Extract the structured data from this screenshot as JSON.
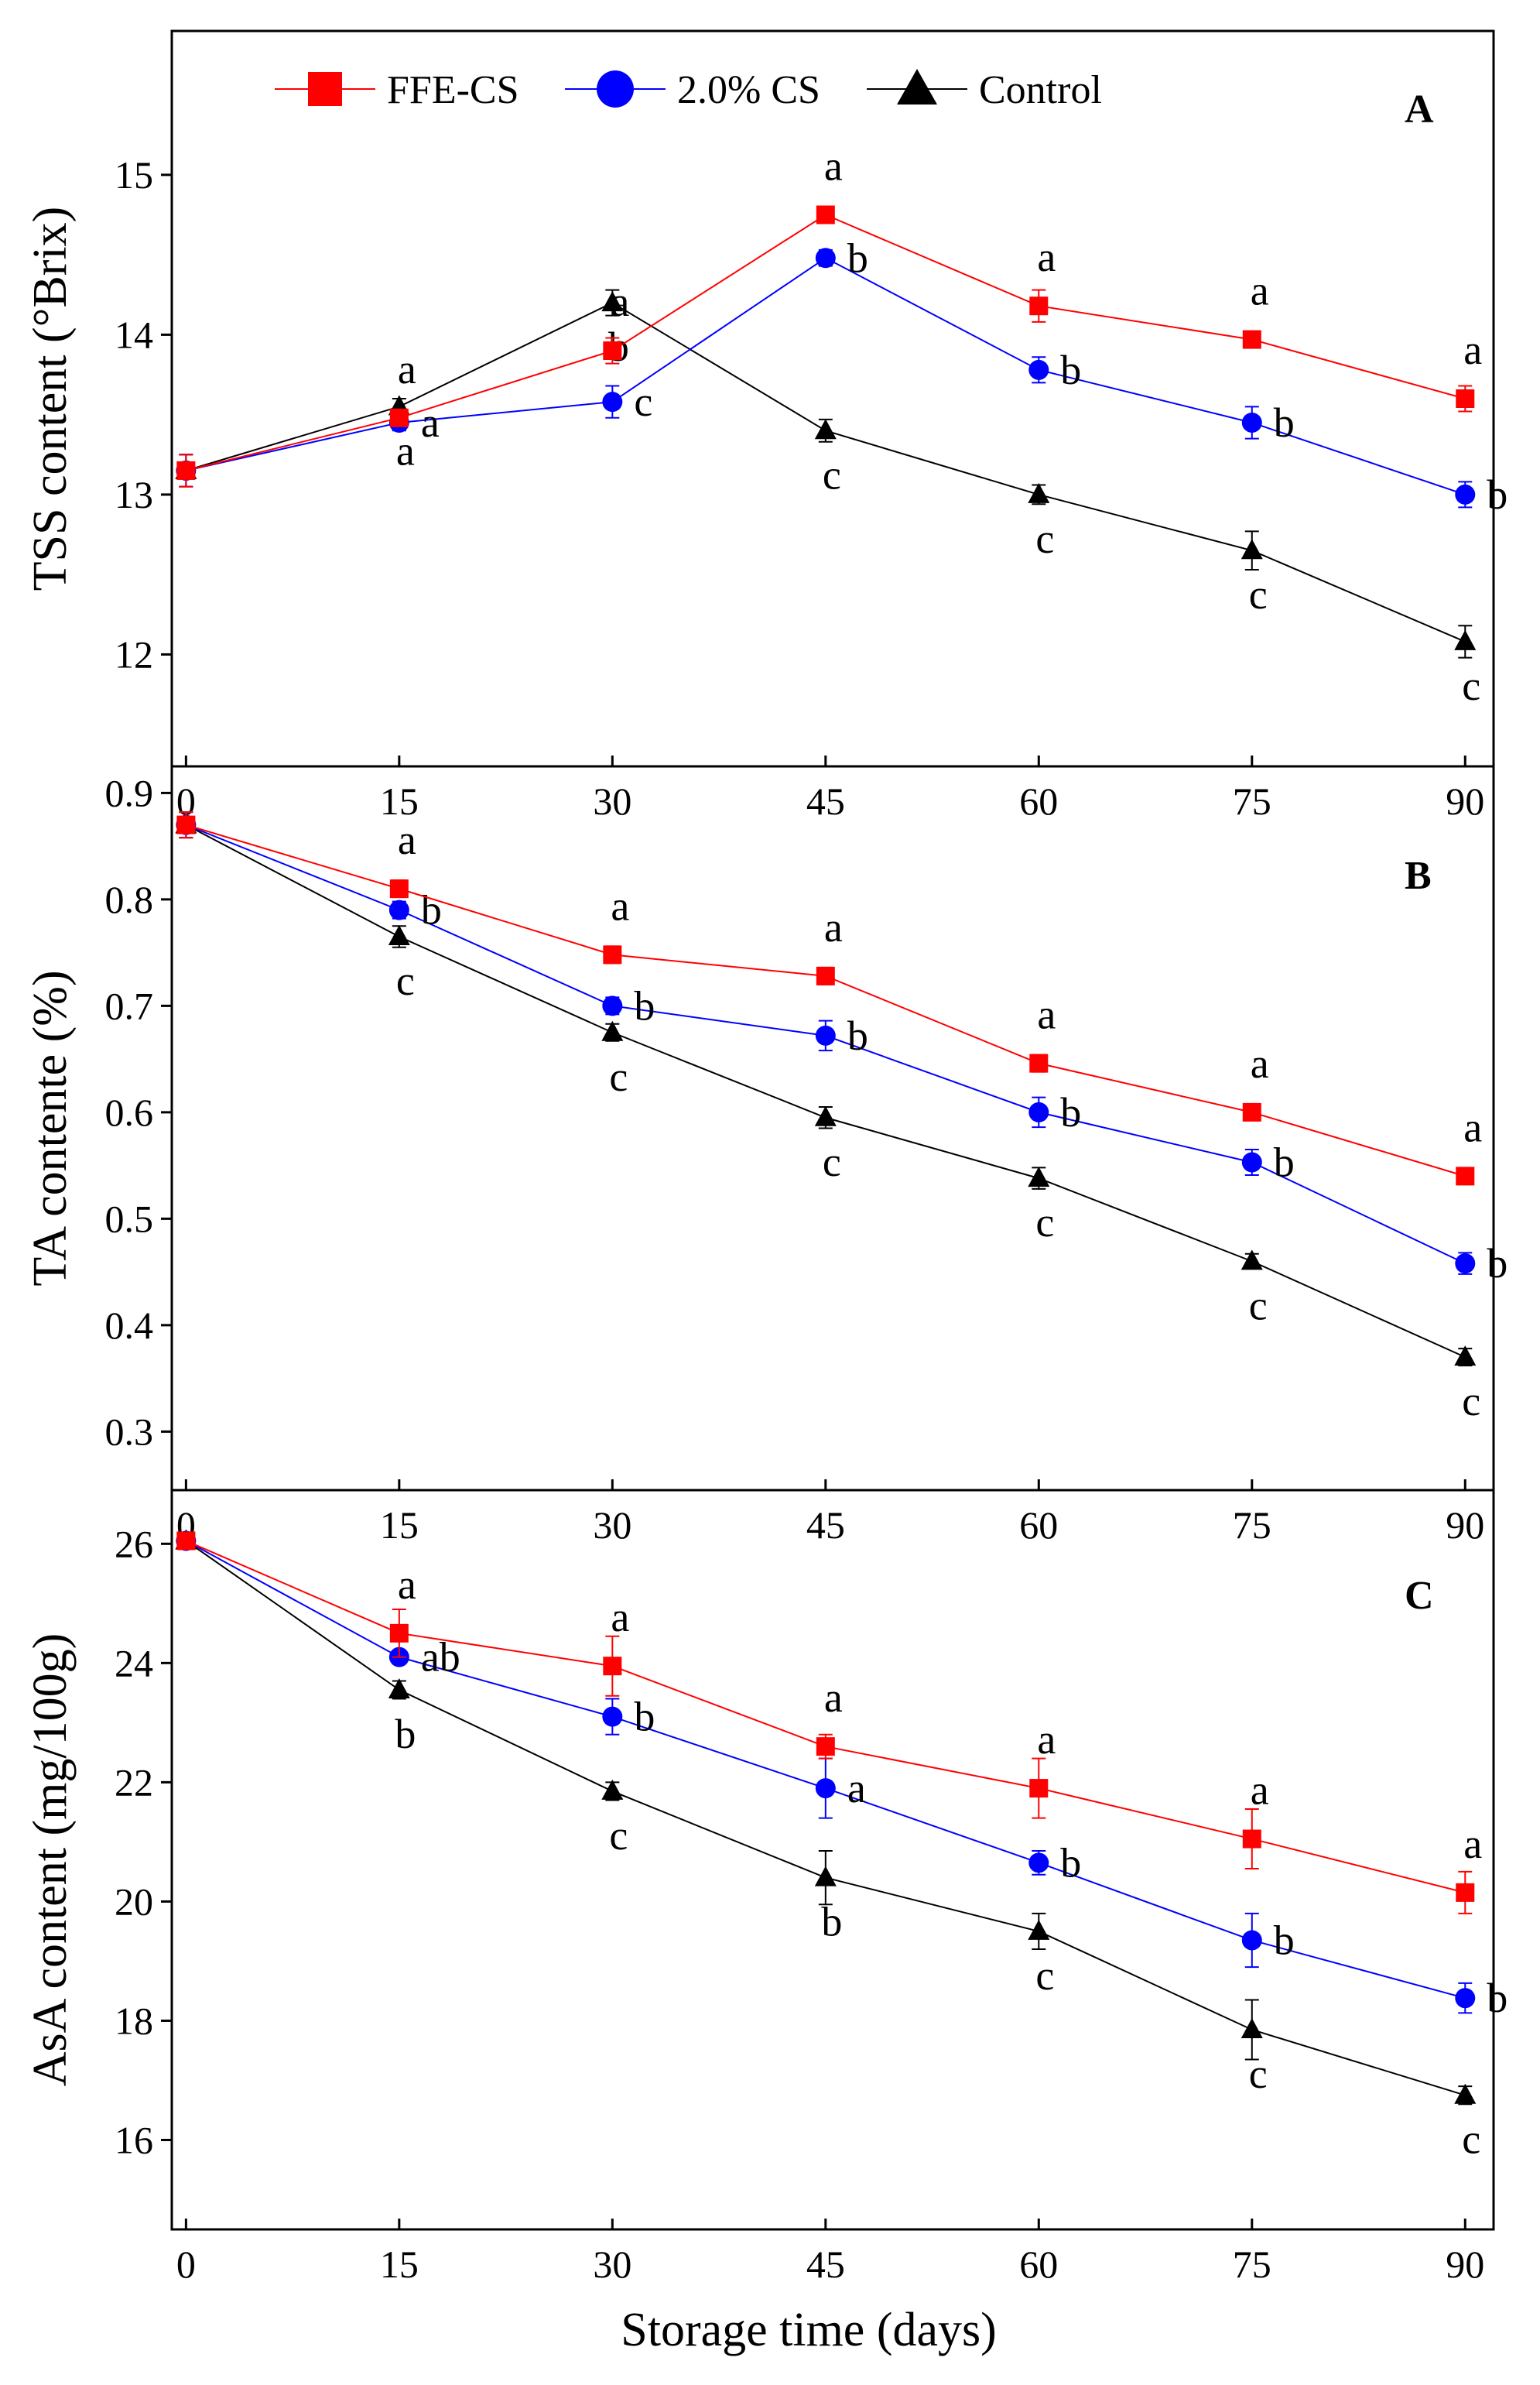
{
  "colors": {
    "FFE-CS": "#ff0000",
    "2.0% CS": "#0000ff",
    "Control": "#000000",
    "axis": "#000000"
  },
  "legend": [
    {
      "name": "FFE-CS",
      "marker": "square"
    },
    {
      "name": "2.0% CS",
      "marker": "circle"
    },
    {
      "name": "Control",
      "marker": "triangle"
    }
  ],
  "x_axis": {
    "title": "Storage time (days)",
    "ticks": [
      0,
      15,
      30,
      45,
      60,
      75,
      90
    ]
  },
  "chart_data": [
    {
      "panel": "A",
      "type": "line",
      "ylabel": "TSS content (°Brix)",
      "xlim": [
        -1,
        92
      ],
      "ylim": [
        11.3,
        15.9
      ],
      "yticks": [
        12,
        13,
        14,
        15
      ],
      "x": [
        0,
        15,
        30,
        45,
        60,
        75,
        90
      ],
      "series": [
        {
          "name": "FFE-CS",
          "marker": "square",
          "values": [
            13.15,
            13.48,
            13.9,
            14.75,
            14.18,
            13.97,
            13.6
          ],
          "errors": [
            0.1,
            0.05,
            0.08,
            0.05,
            0.1,
            0.05,
            0.08
          ],
          "letters": [
            "",
            "a",
            "a",
            "a",
            "a",
            "a",
            "a"
          ]
        },
        {
          "name": "2.0% CS",
          "marker": "circle",
          "values": [
            13.15,
            13.45,
            13.58,
            14.48,
            13.78,
            13.45,
            13.0
          ],
          "errors": [
            0.1,
            0.05,
            0.1,
            0.05,
            0.08,
            0.1,
            0.08
          ],
          "letters": [
            "",
            "a",
            "c",
            "b",
            "b",
            "b",
            "b"
          ]
        },
        {
          "name": "Control",
          "marker": "triangle",
          "values": [
            13.15,
            13.55,
            14.2,
            13.4,
            13.0,
            12.65,
            12.08
          ],
          "errors": [
            0.1,
            0.05,
            0.08,
            0.07,
            0.06,
            0.12,
            0.1
          ],
          "letters": [
            "",
            "a",
            "b",
            "c",
            "c",
            "c",
            "c"
          ]
        }
      ]
    },
    {
      "panel": "B",
      "type": "line",
      "ylabel": "TA contente (%)",
      "xlim": [
        -1,
        92
      ],
      "ylim": [
        0.245,
        0.925
      ],
      "yticks": [
        0.3,
        0.4,
        0.5,
        0.6,
        0.7,
        0.8,
        0.9
      ],
      "x": [
        0,
        15,
        30,
        45,
        60,
        75,
        90
      ],
      "series": [
        {
          "name": "FFE-CS",
          "marker": "square",
          "values": [
            0.87,
            0.81,
            0.748,
            0.728,
            0.646,
            0.6,
            0.54
          ],
          "errors": [
            0.012,
            0.008,
            0.008,
            0.008,
            0.008,
            0.007,
            0.007
          ],
          "letters": [
            "",
            "a",
            "a",
            "a",
            "a",
            "a",
            "a"
          ]
        },
        {
          "name": "2.0% CS",
          "marker": "circle",
          "values": [
            0.87,
            0.79,
            0.7,
            0.672,
            0.6,
            0.553,
            0.458
          ],
          "errors": [
            0.012,
            0.008,
            0.008,
            0.014,
            0.014,
            0.012,
            0.01
          ],
          "letters": [
            "",
            "b",
            "b",
            "b",
            "b",
            "b",
            "b"
          ]
        },
        {
          "name": "Control",
          "marker": "triangle",
          "values": [
            0.87,
            0.765,
            0.675,
            0.595,
            0.538,
            0.46,
            0.37
          ],
          "errors": [
            0.012,
            0.01,
            0.008,
            0.01,
            0.01,
            0.007,
            0.008
          ],
          "letters": [
            "",
            "c",
            "c",
            "c",
            "c",
            "c",
            "c"
          ]
        }
      ]
    },
    {
      "panel": "C",
      "type": "line",
      "ylabel": "AsA content (mg/100g)",
      "xlim": [
        -1,
        92
      ],
      "ylim": [
        14.5,
        26.9
      ],
      "yticks": [
        16,
        18,
        20,
        22,
        24,
        26
      ],
      "x": [
        0,
        15,
        30,
        45,
        60,
        75,
        90
      ],
      "series": [
        {
          "name": "FFE-CS",
          "marker": "square",
          "values": [
            26.05,
            24.5,
            23.95,
            22.6,
            21.9,
            21.05,
            20.15
          ],
          "errors": [
            0.1,
            0.4,
            0.5,
            0.2,
            0.5,
            0.5,
            0.35
          ],
          "letters": [
            "",
            "a",
            "a",
            "a",
            "a",
            "a",
            "a"
          ]
        },
        {
          "name": "2.0% CS",
          "marker": "circle",
          "values": [
            26.05,
            24.1,
            23.1,
            21.9,
            20.65,
            19.35,
            18.38
          ],
          "errors": [
            0.1,
            0.1,
            0.3,
            0.5,
            0.2,
            0.45,
            0.25
          ],
          "letters": [
            "",
            "ab",
            "b",
            "a",
            "b",
            "b",
            "b"
          ]
        },
        {
          "name": "Control",
          "marker": "triangle",
          "values": [
            26.05,
            23.55,
            21.85,
            20.4,
            19.5,
            17.85,
            16.75
          ],
          "errors": [
            0.1,
            0.15,
            0.15,
            0.45,
            0.3,
            0.5,
            0.15
          ],
          "letters": [
            "",
            "b",
            "c",
            "b",
            "c",
            "c",
            "c"
          ]
        }
      ]
    }
  ]
}
